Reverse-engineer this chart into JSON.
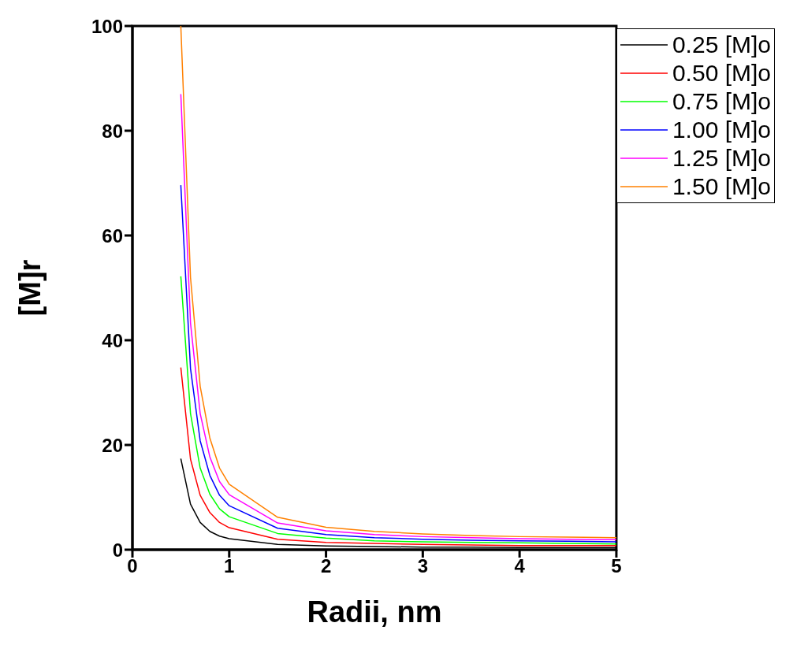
{
  "chart_data": {
    "type": "line",
    "xlabel": "Radii, nm",
    "ylabel": "[M]r",
    "x": [
      0.5,
      0.6,
      0.7,
      0.8,
      0.9,
      1.0,
      1.5,
      2,
      2.5,
      3,
      3.5,
      4,
      4.5,
      5
    ],
    "series": [
      {
        "name": "0.25 [M]o",
        "color": "#000000",
        "values": [
          17.4,
          8.7,
          5.2,
          3.5,
          2.6,
          2.1,
          1.0,
          0.7,
          0.6,
          0.5,
          0.5,
          0.4,
          0.4,
          0.4
        ]
      },
      {
        "name": "0.50 [M]o",
        "color": "#ff0000",
        "values": [
          34.8,
          17.3,
          10.4,
          7.1,
          5.2,
          4.2,
          2.0,
          1.4,
          1.2,
          1.0,
          0.9,
          0.8,
          0.8,
          0.8
        ]
      },
      {
        "name": "0.75 [M]o",
        "color": "#00ff00",
        "values": [
          52.2,
          26,
          15.6,
          10.6,
          7.8,
          6.3,
          3.1,
          2.2,
          1.7,
          1.5,
          1.4,
          1.3,
          1.2,
          1.1
        ]
      },
      {
        "name": "1.00 [M]o",
        "color": "#0000ff",
        "values": [
          69.6,
          34.6,
          20.8,
          14.2,
          10.4,
          8.4,
          4.1,
          2.9,
          2.3,
          2.0,
          1.8,
          1.7,
          1.6,
          1.5
        ]
      },
      {
        "name": "1.25 [M]o",
        "color": "#ff00ff",
        "values": [
          87,
          43.3,
          26,
          17.7,
          13,
          10.5,
          5.1,
          3.6,
          2.9,
          2.5,
          2.3,
          2.1,
          2.0,
          1.9
        ]
      },
      {
        "name": "1.50 [M]o",
        "color": "#ff8000",
        "values": [
          100,
          52,
          31.2,
          21.3,
          15.6,
          12.5,
          6.2,
          4.3,
          3.5,
          3.0,
          2.7,
          2.5,
          2.4,
          2.3
        ]
      }
    ],
    "xlim": [
      0,
      5
    ],
    "xticks": [
      0,
      1,
      2,
      3,
      4,
      5
    ],
    "ylim": [
      0,
      100
    ],
    "yticks": [
      0,
      20,
      40,
      60,
      80,
      100
    ],
    "grid": false,
    "legend": "top right",
    "marker": "none",
    "line_style": "solid"
  }
}
